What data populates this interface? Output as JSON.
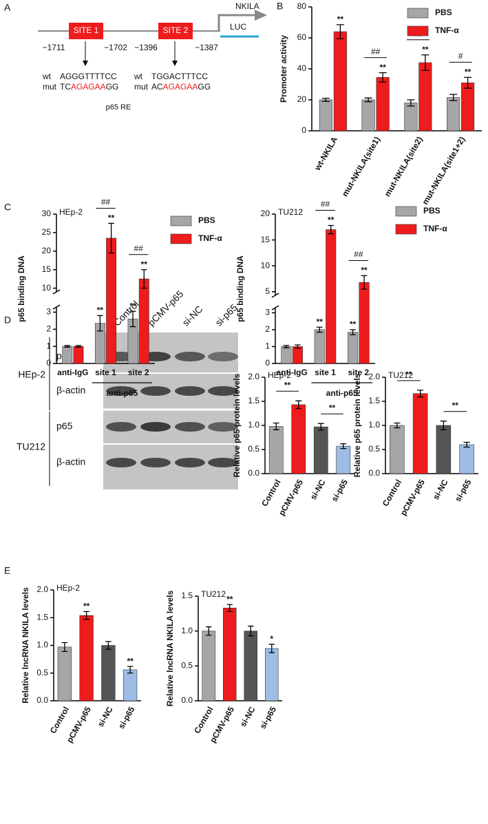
{
  "panels": [
    "A",
    "B",
    "C",
    "D",
    "E"
  ],
  "diagram": {
    "gene": "NKILA",
    "reporter": "LUC",
    "caption": "p65 RE",
    "sites": [
      {
        "label": "SITE 1",
        "start": "−1711",
        "end": "−1702",
        "wt_label": "wt",
        "wt_seq": "AGGGTTTTCC",
        "mut_label": "mut",
        "mut_seq": [
          "TC",
          "AGAGAA",
          "GG"
        ]
      },
      {
        "label": "SITE 2",
        "start": "−1396",
        "end": "−1387",
        "wt_label": "wt",
        "wt_seq": "TGGACTTTCC",
        "mut_label": "mut",
        "mut_seq": [
          "AC",
          "AGAGAA",
          "GG"
        ]
      }
    ]
  },
  "blot": {
    "lanes": [
      "Control",
      "pCMV-p65",
      "si-NC",
      "si-p65"
    ],
    "groups": [
      {
        "name": "HEp-2",
        "rows": [
          "p65",
          "β-actin"
        ]
      },
      {
        "name": "TU212",
        "rows": [
          "p65",
          "β-actin"
        ]
      }
    ]
  },
  "chart_data": [
    {
      "type": "bar",
      "ylabel": "Promoter activity",
      "categories": [
        "wt-NKILA",
        "mut-NKILA(site1)",
        "mut-NKILA(site2)",
        "mut-NKILA(site1+2)"
      ],
      "series": [
        {
          "name": "PBS",
          "color": "#a6a6a8",
          "values": [
            20,
            20,
            18,
            21.5
          ],
          "errors": [
            1,
            1.2,
            2,
            2
          ]
        },
        {
          "name": "TNF-α",
          "color": "#ee1c1c",
          "values": [
            64,
            34.5,
            44,
            31
          ],
          "errors": [
            4.5,
            3,
            5,
            3.5
          ],
          "stars": [
            "**",
            "**",
            "**",
            "**"
          ]
        }
      ],
      "pair_labels": [
        null,
        "##",
        "##",
        "#"
      ],
      "ylim": [
        0,
        80
      ],
      "yticks": [
        0,
        20,
        40,
        60,
        80
      ],
      "legend": "top-right"
    },
    {
      "type": "bar",
      "title": "HEp-2",
      "ylabel": "p65 binding DNA",
      "categories": [
        "anti-IgG",
        "site 1",
        "site 2"
      ],
      "group_label": "anti-p65",
      "series": [
        {
          "name": "PBS",
          "color": "#a6a6a8",
          "values": [
            1,
            2.35,
            2.6
          ],
          "errors": [
            0.05,
            0.45,
            0.45
          ],
          "stars": [
            null,
            "**",
            "**"
          ]
        },
        {
          "name": "TNF-α",
          "color": "#ee1c1c",
          "values": [
            1,
            23.5,
            12.5
          ],
          "errors": [
            0.05,
            4,
            2.5
          ],
          "stars": [
            null,
            "**",
            "**"
          ]
        }
      ],
      "pair_labels": [
        null,
        "##",
        "##"
      ],
      "ylim": [
        0,
        30
      ],
      "ybreak": [
        3.3,
        9
      ],
      "yticks": [
        0,
        1,
        2,
        3,
        10,
        15,
        20,
        25,
        30
      ],
      "legend": "right"
    },
    {
      "type": "bar",
      "title": "TU212",
      "ylabel": "p65 binding DNA",
      "categories": [
        "anti-IgG",
        "site 1",
        "site 2"
      ],
      "group_label": "anti-p65",
      "series": [
        {
          "name": "PBS",
          "color": "#a6a6a8",
          "values": [
            1,
            2,
            1.85
          ],
          "errors": [
            0.07,
            0.15,
            0.15
          ],
          "stars": [
            null,
            "**",
            "**"
          ]
        },
        {
          "name": "TNF-α",
          "color": "#ee1c1c",
          "values": [
            1,
            17,
            6.8
          ],
          "errors": [
            0.1,
            0.8,
            1.3
          ],
          "stars": [
            null,
            "**",
            "**"
          ]
        }
      ],
      "pair_labels": [
        null,
        "##",
        "##"
      ],
      "ylim": [
        0,
        20
      ],
      "ybreak": [
        3.3,
        4.3
      ],
      "yticks": [
        0,
        1,
        2,
        3,
        5,
        10,
        15,
        20
      ],
      "legend": "right"
    },
    {
      "type": "bar",
      "title": "HEp-2",
      "ylabel": "Relative p65 protein levels",
      "categories": [
        "Control",
        "pCMV-p65",
        "si-NC",
        "si-p65"
      ],
      "values": [
        0.98,
        1.43,
        0.97,
        0.57
      ],
      "errors": [
        0.07,
        0.08,
        0.07,
        0.05
      ],
      "colors": [
        "#a6a6a8",
        "#ee1c1c",
        "#555555",
        "#9dbde6"
      ],
      "comparison_labels": [
        "**",
        "**"
      ],
      "ylim": [
        0,
        2
      ],
      "yticks": [
        {
          "value": 0,
          "label": "0.0"
        },
        0.5,
        {
          "value": 1,
          "label": "1.0"
        },
        1.5,
        {
          "value": 2,
          "label": "2.0"
        }
      ]
    },
    {
      "type": "bar",
      "title": "TU212",
      "ylabel": "Relative p65 protein levels",
      "categories": [
        "Control",
        "pCMV-p65",
        "si-NC",
        "si-p65"
      ],
      "values": [
        1.0,
        1.66,
        1.0,
        0.6
      ],
      "errors": [
        0.05,
        0.07,
        0.09,
        0.05
      ],
      "colors": [
        "#a6a6a8",
        "#ee1c1c",
        "#555555",
        "#9dbde6"
      ],
      "comparison_labels": [
        "**",
        "**"
      ],
      "ylim": [
        0,
        2
      ],
      "yticks": [
        {
          "value": 0,
          "label": "0.0"
        },
        0.5,
        {
          "value": 1,
          "label": "1.0"
        },
        1.5,
        {
          "value": 2,
          "label": "2.0"
        }
      ]
    },
    {
      "type": "bar",
      "title": "HEp-2",
      "ylabel": "Relative lncRNA NKILA levels",
      "categories": [
        "Control",
        "pCMV-p65",
        "si-NC",
        "si-p65"
      ],
      "values": [
        0.97,
        1.54,
        1.0,
        0.56
      ],
      "errors": [
        0.08,
        0.07,
        0.07,
        0.06
      ],
      "colors": [
        "#a6a6a8",
        "#ee1c1c",
        "#555555",
        "#9dbde6"
      ],
      "stars": [
        null,
        "**",
        null,
        "**"
      ],
      "ylim": [
        0,
        2
      ],
      "yticks": [
        {
          "value": 0,
          "label": "0.0"
        },
        0.5,
        {
          "value": 1,
          "label": "1.0"
        },
        1.5,
        {
          "value": 2,
          "label": "2.0"
        }
      ]
    },
    {
      "type": "bar",
      "title": "TU212",
      "ylabel": "Relative lncRNA NKILA levels",
      "categories": [
        "Control",
        "pCMV-p65",
        "si-NC",
        "si-p65"
      ],
      "values": [
        1.0,
        1.33,
        1.0,
        0.75
      ],
      "errors": [
        0.06,
        0.05,
        0.07,
        0.06
      ],
      "colors": [
        "#a6a6a8",
        "#ee1c1c",
        "#555555",
        "#9dbde6"
      ],
      "stars": [
        null,
        "**",
        null,
        "*"
      ],
      "ylim": [
        0,
        1.5
      ],
      "yticks": [
        {
          "value": 0,
          "label": "0.0"
        },
        0.5,
        {
          "value": 1,
          "label": "1.0"
        },
        1.5
      ]
    }
  ]
}
